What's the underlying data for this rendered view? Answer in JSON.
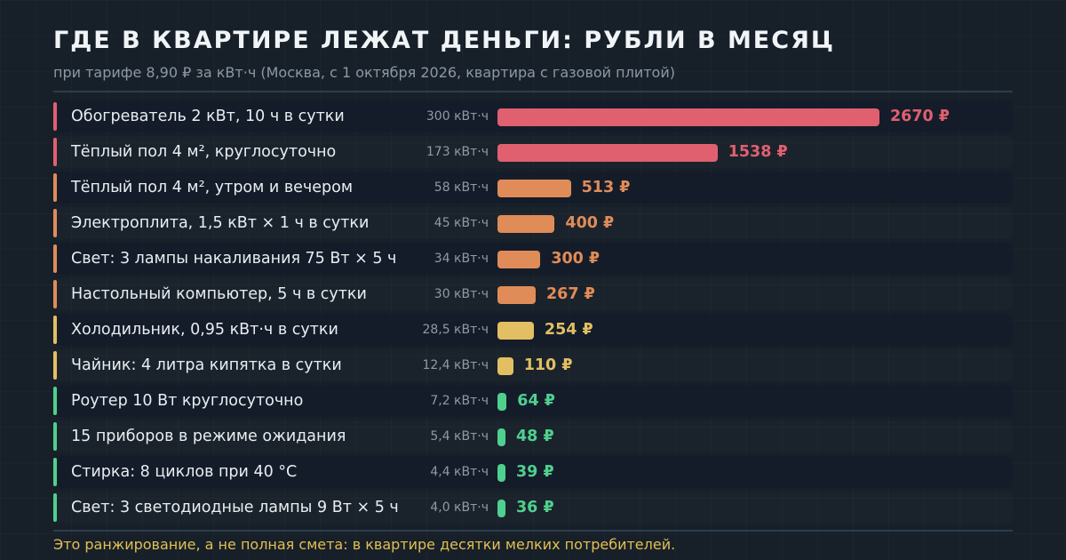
{
  "title": "ГДЕ В КВАРТИРЕ ЛЕЖАТ ДЕНЬГИ: РУБЛИ В МЕСЯЦ",
  "subtitle": "при тарифе 8,90 ₽ за кВт·ч (Москва, с 1 октября 2026, квартира с газовой плитой)",
  "footnote": "Это ранжирование, а не полная смета: в квартире десятки мелких потребителей.",
  "colors": {
    "background": "#172029",
    "high": "#e0606f",
    "medium": "#e08c58",
    "moderate": "#e2bf62",
    "low": "#4fd08e",
    "footnote": "#e4bf52"
  },
  "chart_data": {
    "type": "bar",
    "orientation": "horizontal",
    "title": "ГДЕ В КВАРТИРЕ ЛЕЖАТ ДЕНЬГИ: РУБЛИ В МЕСЯЦ",
    "subtitle": "при тарифе 8,90 ₽ за кВт·ч (Москва, с 1 октября 2026, квартира с газовой плитой)",
    "xlim": [
      0,
      2670
    ],
    "grid": false,
    "rows": [
      {
        "label": "Обогреватель 2 кВт, 10 ч в сутки",
        "kwh_label": "300 кВт·ч",
        "value": 2670,
        "value_label": "2670 ₽",
        "level": "high"
      },
      {
        "label": "Тёплый пол 4 м², круглосуточно",
        "kwh_label": "173 кВт·ч",
        "value": 1538,
        "value_label": "1538 ₽",
        "level": "high"
      },
      {
        "label": "Тёплый пол 4 м², утром и вечером",
        "kwh_label": "58 кВт·ч",
        "value": 513,
        "value_label": "513 ₽",
        "level": "medium"
      },
      {
        "label": "Электроплита, 1,5 кВт × 1 ч в сутки",
        "kwh_label": "45 кВт·ч",
        "value": 400,
        "value_label": "400 ₽",
        "level": "medium"
      },
      {
        "label": "Свет: 3 лампы накаливания 75 Вт × 5 ч",
        "kwh_label": "34 кВт·ч",
        "value": 300,
        "value_label": "300 ₽",
        "level": "medium"
      },
      {
        "label": "Настольный компьютер, 5 ч в сутки",
        "kwh_label": "30 кВт·ч",
        "value": 267,
        "value_label": "267 ₽",
        "level": "medium"
      },
      {
        "label": "Холодильник, 0,95 кВт·ч в сутки",
        "kwh_label": "28,5 кВт·ч",
        "value": 254,
        "value_label": "254 ₽",
        "level": "moderate"
      },
      {
        "label": "Чайник: 4 литра кипятка в сутки",
        "kwh_label": "12,4 кВт·ч",
        "value": 110,
        "value_label": "110 ₽",
        "level": "moderate"
      },
      {
        "label": "Роутер 10 Вт круглосуточно",
        "kwh_label": "7,2 кВт·ч",
        "value": 64,
        "value_label": "64 ₽",
        "level": "low"
      },
      {
        "label": "15 приборов в режиме ожидания",
        "kwh_label": "5,4 кВт·ч",
        "value": 48,
        "value_label": "48 ₽",
        "level": "low"
      },
      {
        "label": "Стирка: 8 циклов при 40 °C",
        "kwh_label": "4,4 кВт·ч",
        "value": 39,
        "value_label": "39 ₽",
        "level": "low"
      },
      {
        "label": "Свет: 3 светодиодные лампы 9 Вт × 5 ч",
        "kwh_label": "4,0 кВт·ч",
        "value": 36,
        "value_label": "36 ₽",
        "level": "low"
      }
    ]
  }
}
